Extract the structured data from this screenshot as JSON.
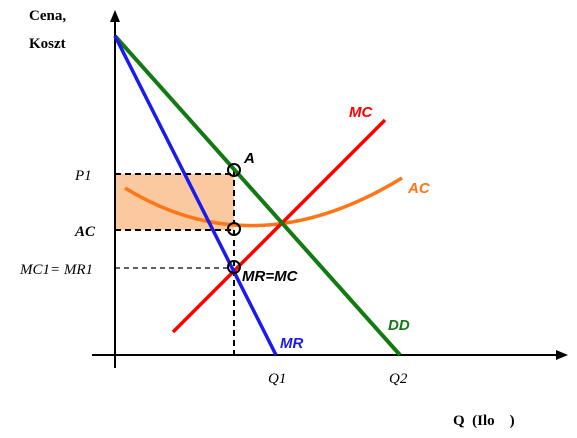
{
  "axes": {
    "y_label_line1": "Cena,",
    "y_label_line2": "Koszt",
    "x_label": "Q  (Ilo    )"
  },
  "ticks": {
    "p1": "P1",
    "ac": "AC",
    "mc_mr": "MC1= MR1",
    "q1": "Q1",
    "q2": "Q2"
  },
  "curves": {
    "mc": {
      "label": "MC",
      "color": "#ff0000"
    },
    "ac": {
      "label": "AC",
      "color": "#ff7518"
    },
    "dd": {
      "label": "DD",
      "color": "#117a11"
    },
    "mr": {
      "label": "MR",
      "color": "#1a1aee"
    }
  },
  "points": {
    "a": "A",
    "mr_eq_mc": "MR=MC"
  },
  "colors": {
    "profit_fill": "#fbc9a0",
    "axis": "#000000"
  }
}
